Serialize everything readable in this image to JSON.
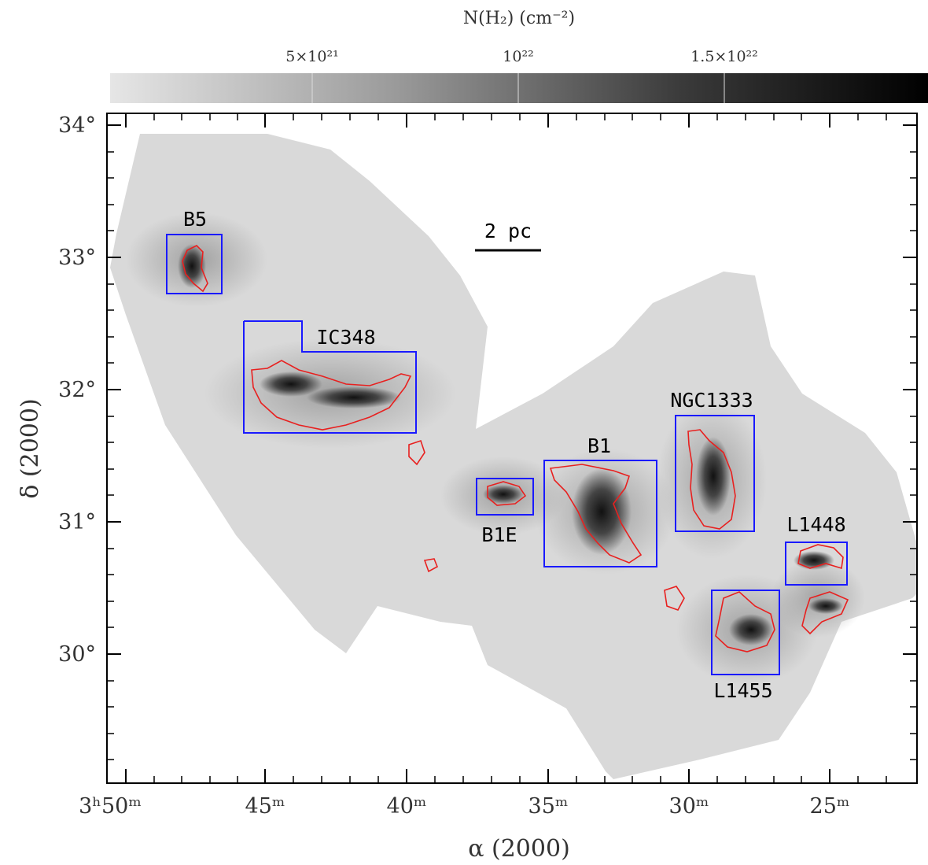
{
  "colorbar": {
    "title": "N(H₂) (cm⁻²)",
    "ticks": [
      {
        "label": "5×10²¹"
      },
      {
        "label": "10²²"
      },
      {
        "label": "1.5×10²²"
      }
    ],
    "gradient_from": "#e6e6e6",
    "gradient_to": "#000000"
  },
  "axes": {
    "xlabel": "α (2000)",
    "ylabel": "δ (2000)",
    "xticks": [
      "3ʰ50ᵐ",
      "45ᵐ",
      "40ᵐ",
      "35ᵐ",
      "30ᵐ",
      "25ᵐ"
    ],
    "yticks": [
      "34°",
      "33°",
      "32°",
      "31°",
      "30°"
    ]
  },
  "scalebar": {
    "label": "2 pc"
  },
  "regions": [
    {
      "label": "B5"
    },
    {
      "label": "IC348"
    },
    {
      "label": "B1E"
    },
    {
      "label": "B1"
    },
    {
      "label": "NGC1333"
    },
    {
      "label": "L1448"
    },
    {
      "label": "L1455"
    }
  ],
  "colors": {
    "box": "#1a1aff",
    "contour": "#e8201f",
    "map_background": "#d9d9d9"
  }
}
